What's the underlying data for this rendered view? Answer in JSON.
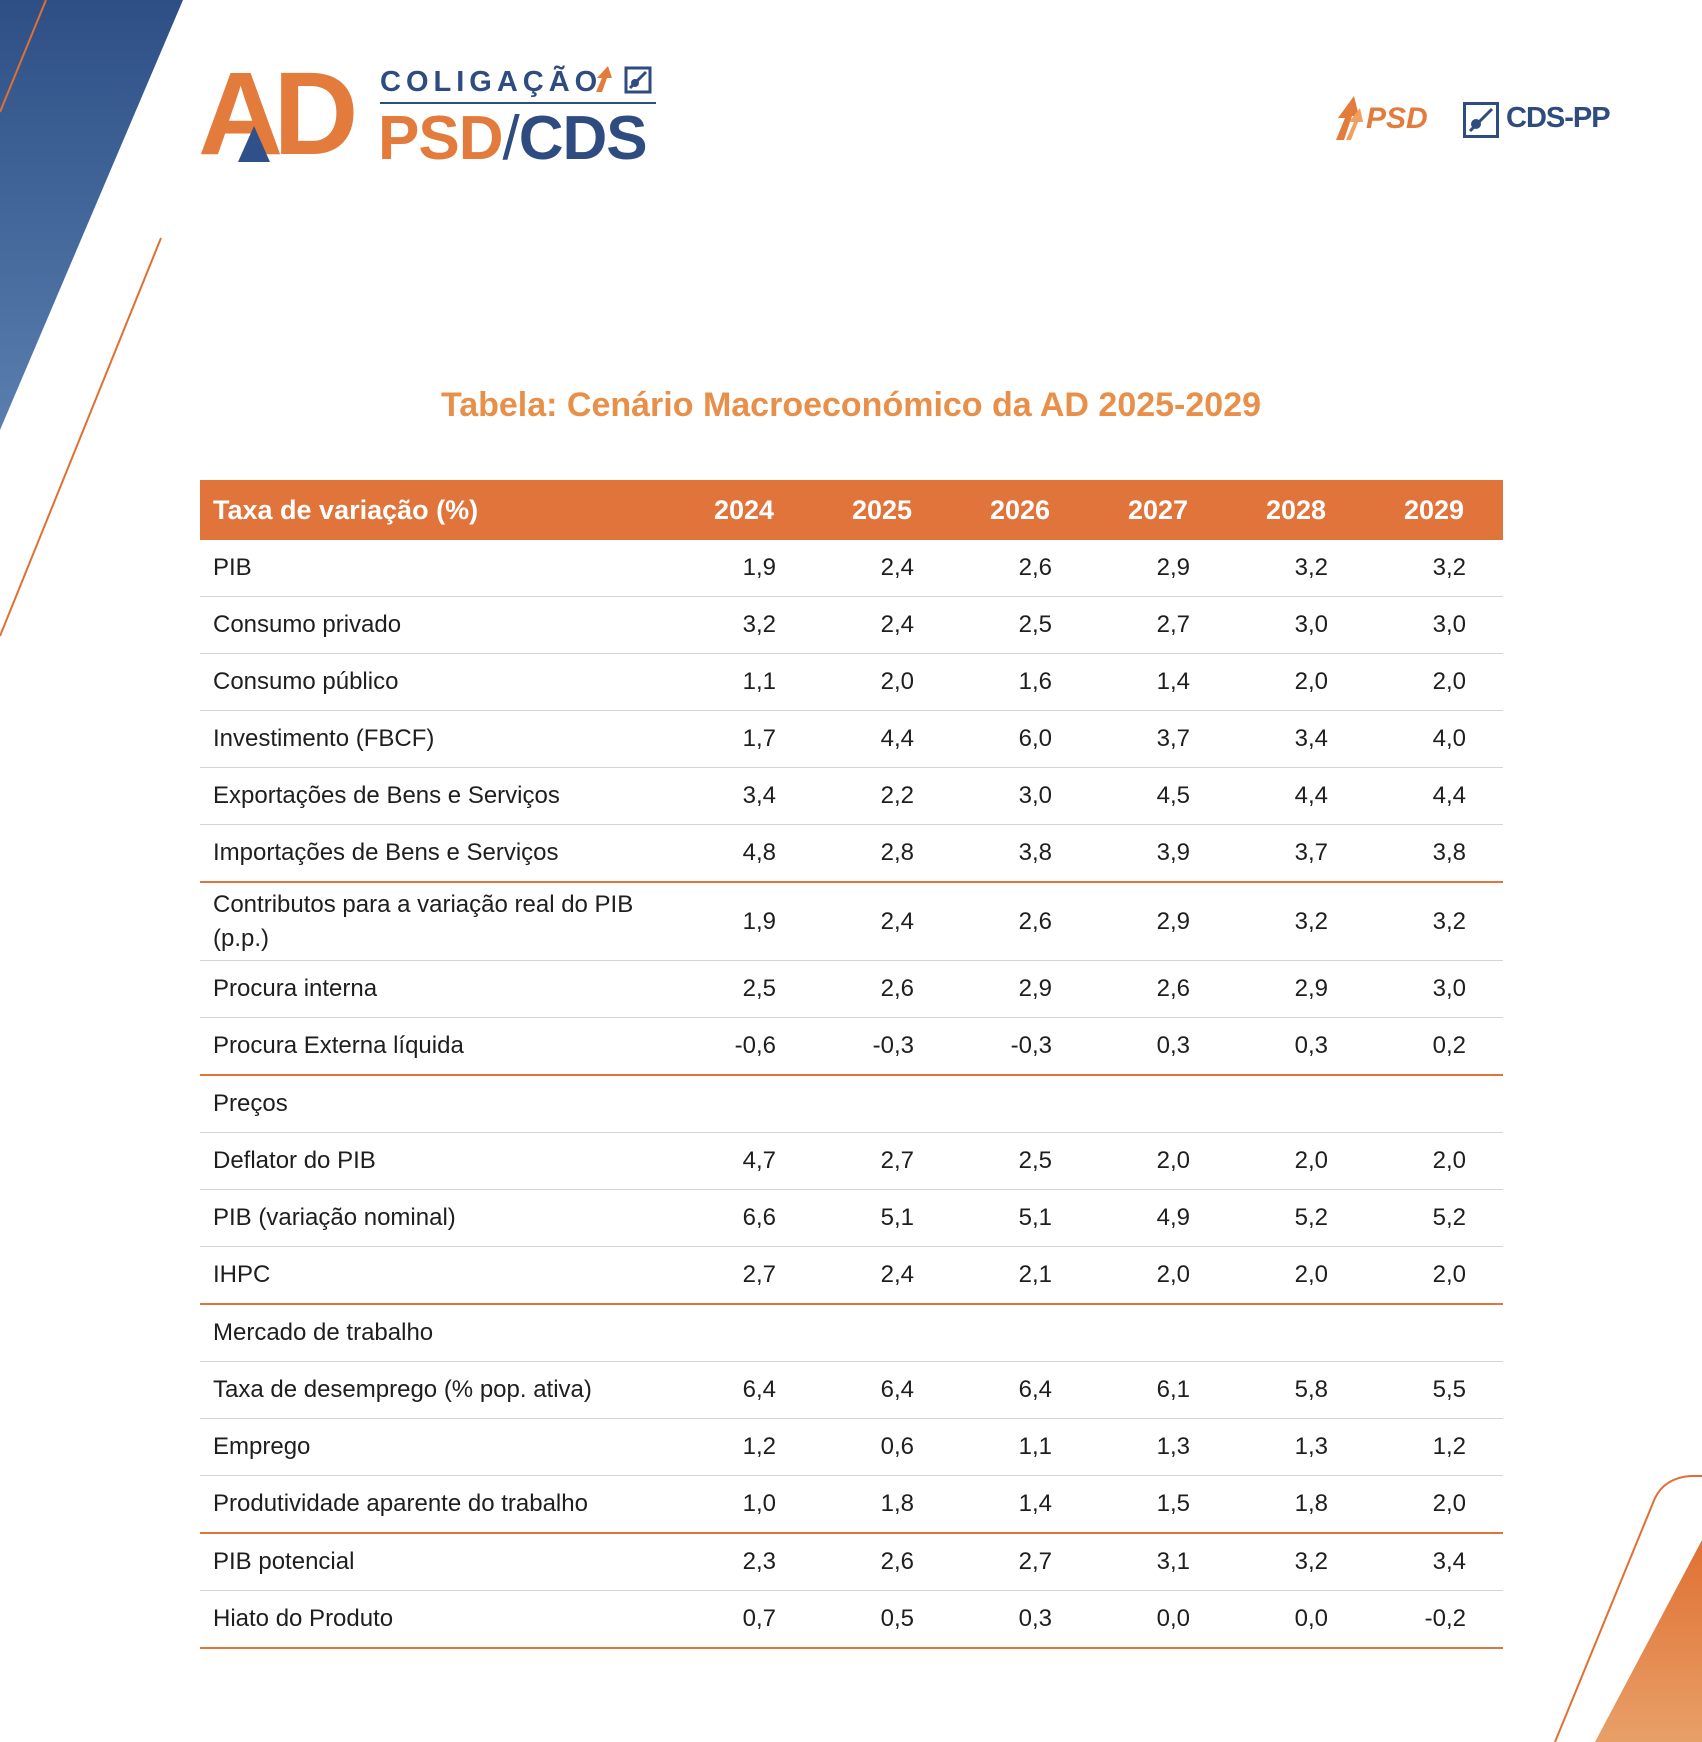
{
  "logo": {
    "mark": "AD",
    "line1": "COLIGAÇÃO",
    "psd": "PSD",
    "slash": "/",
    "cds": "CDS"
  },
  "parties": {
    "psd": "PSD",
    "cds": "CDS-PP"
  },
  "colors": {
    "orange": "#e0743a",
    "blue": "#2f4c80",
    "title": "#e8904a"
  },
  "title": "Tabela: Cenário Macroeconómico da AD 2025-2029",
  "table": {
    "header": [
      "Taxa de variação (%)",
      "2024",
      "2025",
      "2026",
      "2027",
      "2028",
      "2029"
    ],
    "rows": [
      {
        "label": "PIB",
        "values": [
          "1,9",
          "2,4",
          "2,6",
          "2,9",
          "3,2",
          "3,2"
        ]
      },
      {
        "label": "Consumo privado",
        "values": [
          "3,2",
          "2,4",
          "2,5",
          "2,7",
          "3,0",
          "3,0"
        ]
      },
      {
        "label": "Consumo público",
        "values": [
          "1,1",
          "2,0",
          "1,6",
          "1,4",
          "2,0",
          "2,0"
        ]
      },
      {
        "label": "Investimento (FBCF)",
        "values": [
          "1,7",
          "4,4",
          "6,0",
          "3,7",
          "3,4",
          "4,0"
        ]
      },
      {
        "label": "Exportações de Bens e Serviços",
        "values": [
          "3,4",
          "2,2",
          "3,0",
          "4,5",
          "4,4",
          "4,4"
        ]
      },
      {
        "label": "Importações de Bens e Serviços",
        "values": [
          "4,8",
          "2,8",
          "3,8",
          "3,9",
          "3,7",
          "3,8"
        ]
      },
      {
        "label": "Contributos para a variação real do PIB  (p.p.)",
        "values": [
          "1,9",
          "2,4",
          "2,6",
          "2,9",
          "3,2",
          "3,2"
        ]
      },
      {
        "label": "Procura interna",
        "values": [
          "2,5",
          "2,6",
          "2,9",
          "2,6",
          "2,9",
          "3,0"
        ]
      },
      {
        "label": "Procura Externa líquida",
        "values": [
          "-0,6",
          "-0,3",
          "-0,3",
          "0,3",
          "0,3",
          "0,2"
        ]
      },
      {
        "label": "Preços",
        "values": [
          "",
          "",
          "",
          "",
          "",
          ""
        ]
      },
      {
        "label": "Deflator do PIB",
        "values": [
          "4,7",
          "2,7",
          "2,5",
          "2,0",
          "2,0",
          "2,0"
        ]
      },
      {
        "label": "PIB (variação nominal)",
        "values": [
          "6,6",
          "5,1",
          "5,1",
          "4,9",
          "5,2",
          "5,2"
        ]
      },
      {
        "label": "IHPC",
        "values": [
          "2,7",
          "2,4",
          "2,1",
          "2,0",
          "2,0",
          "2,0"
        ]
      },
      {
        "label": "Mercado de trabalho",
        "values": [
          "",
          "",
          "",
          "",
          "",
          ""
        ]
      },
      {
        "label": "Taxa de desemprego (% pop. ativa)",
        "values": [
          "6,4",
          "6,4",
          "6,4",
          "6,1",
          "5,8",
          "5,5"
        ]
      },
      {
        "label": "Emprego",
        "values": [
          "1,2",
          "0,6",
          "1,1",
          "1,3",
          "1,3",
          "1,2"
        ]
      },
      {
        "label": "Produtividade aparente do trabalho",
        "values": [
          "1,0",
          "1,8",
          "1,4",
          "1,5",
          "1,8",
          "2,0"
        ]
      },
      {
        "label": "PIB potencial",
        "values": [
          "2,3",
          "2,6",
          "2,7",
          "3,1",
          "3,2",
          "3,4"
        ]
      },
      {
        "label": "Hiato do Produto",
        "values": [
          "0,7",
          "0,5",
          "0,3",
          "0,0",
          "0,0",
          "-0,2"
        ]
      }
    ]
  }
}
